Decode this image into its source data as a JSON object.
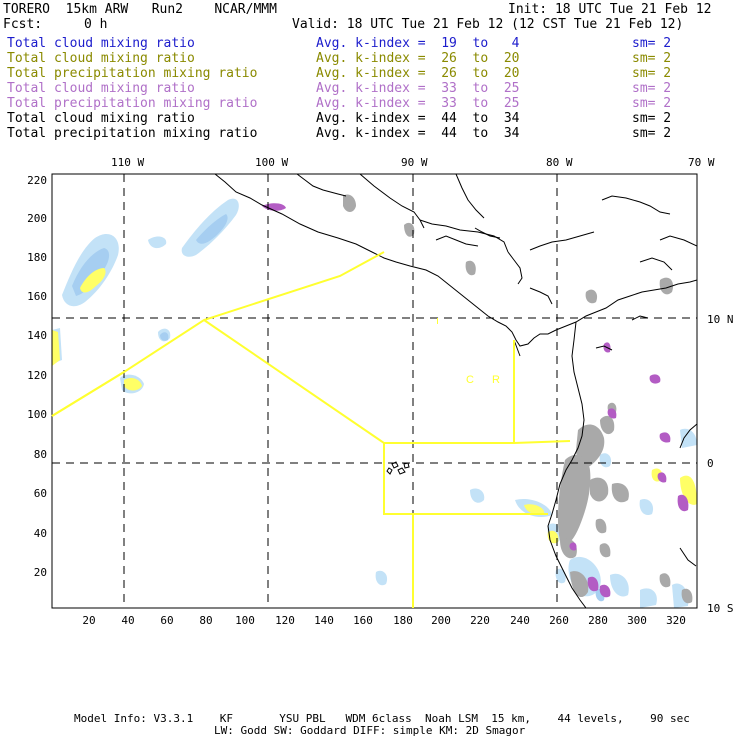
{
  "header": {
    "title_left": "TORERO  15km ARW   Run2    NCAR/MMM",
    "init": "Init: 18 UTC Tue 21 Feb 12",
    "fcst_label": "Fcst:",
    "fcst_value": "0 h",
    "valid": "Valid: 18 UTC Tue 21 Feb 12 (12 CST Tue 21 Feb 12)"
  },
  "legend": [
    {
      "field": "Total cloud mixing ratio",
      "index": "Avg. k-index =  19  to   4",
      "sm": "sm= 2",
      "color": "#1c1ccc"
    },
    {
      "field": "Total cloud mixing ratio",
      "index": "Avg. k-index =  26  to  20",
      "sm": "sm= 2",
      "color": "#8a8a00"
    },
    {
      "field": "Total precipitation mixing ratio",
      "index": "Avg. k-index =  26  to  20",
      "sm": "sm= 2",
      "color": "#8a8a00"
    },
    {
      "field": "Total cloud mixing ratio",
      "index": "Avg. k-index =  33  to  25",
      "sm": "sm= 2",
      "color": "#b070c8"
    },
    {
      "field": "Total precipitation mixing ratio",
      "index": "Avg. k-index =  33  to  25",
      "sm": "sm= 2",
      "color": "#b070c8"
    },
    {
      "field": "Total cloud mixing ratio",
      "index": "Avg. k-index =  44  to  34",
      "sm": "sm= 2",
      "color": "#000000"
    },
    {
      "field": "Total precipitation mixing ratio",
      "index": "Avg. k-index =  44  to  34",
      "sm": "sm= 2",
      "color": "#000000"
    }
  ],
  "map": {
    "x_grid_ticks": [
      "20",
      "40",
      "60",
      "80",
      "100",
      "120",
      "140",
      "160",
      "180",
      "200",
      "220",
      "240",
      "260",
      "280",
      "300",
      "320"
    ],
    "y_grid_ticks": [
      "20",
      "40",
      "60",
      "80",
      "100",
      "120",
      "140",
      "160",
      "180",
      "200",
      "220"
    ],
    "lon_labels": [
      "110 W",
      "100 W",
      "90 W",
      "80 W",
      "70 W"
    ],
    "lat_labels": [
      "10 N",
      "0",
      "10 S"
    ],
    "colors": {
      "frame": "#000000",
      "coast": "#000000",
      "sector": "#ffff30",
      "cloud_light": "#b9dcf5",
      "cloud_med": "#9cc7ef",
      "gray": "#a8a8a8",
      "purple": "#b05cc0",
      "yellow": "#ffff66"
    },
    "annotations": [
      "C",
      "R"
    ]
  },
  "footer": {
    "line1": "Model Info: V3.3.1    KF       YSU PBL   WDM 6class  Noah LSM  15 km,    44 levels,    90 sec",
    "line2": "LW: Godd SW: Goddard DIFF: simple KM: 2D Smagor"
  }
}
